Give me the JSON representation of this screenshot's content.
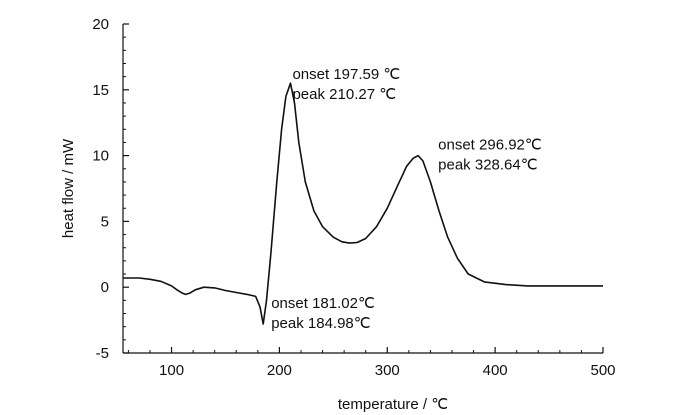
{
  "chart_data": {
    "type": "line",
    "title": "",
    "xlabel": "temperature / ℃",
    "ylabel": "heat flow / mW",
    "xlim": [
      55,
      500
    ],
    "ylim": [
      -5,
      20
    ],
    "x_ticks": [
      100,
      200,
      300,
      400,
      500
    ],
    "y_ticks": [
      -5,
      0,
      5,
      10,
      15,
      20
    ],
    "grid": false,
    "legend": "none",
    "series": [
      {
        "color": "#111111",
        "x": [
          55,
          70,
          80,
          90,
          100,
          105,
          110,
          113,
          117,
          122,
          130,
          140,
          150,
          160,
          170,
          178,
          182,
          184.98,
          188,
          192,
          197.59,
          202,
          206,
          210.27,
          214,
          218,
          224,
          232,
          240,
          250,
          258,
          265,
          272,
          280,
          290,
          300,
          310,
          318,
          324,
          328.64,
          333,
          340,
          348,
          356,
          365,
          375,
          390,
          410,
          430,
          450,
          470,
          490,
          500
        ],
        "y": [
          0.7,
          0.7,
          0.6,
          0.45,
          0.1,
          -0.2,
          -0.45,
          -0.55,
          -0.45,
          -0.2,
          0.0,
          -0.05,
          -0.25,
          -0.4,
          -0.55,
          -0.7,
          -1.5,
          -2.8,
          -1.0,
          2.5,
          8.0,
          12.0,
          14.5,
          15.5,
          14.0,
          11.0,
          8.0,
          5.8,
          4.6,
          3.8,
          3.45,
          3.35,
          3.4,
          3.7,
          4.6,
          6.0,
          7.8,
          9.2,
          9.8,
          10.0,
          9.6,
          8.0,
          5.8,
          3.8,
          2.2,
          1.0,
          0.4,
          0.2,
          0.1,
          0.1,
          0.1,
          0.1,
          0.1
        ]
      }
    ],
    "annotations": [
      {
        "lines": [
          "onset 197.59 ℃",
          "peak 210.27 ℃"
        ],
        "x": 210.27,
        "y": 15.5
      },
      {
        "lines": [
          "onset 296.92℃",
          "peak 328.64℃"
        ],
        "x": 328.64,
        "y": 10.0
      },
      {
        "lines": [
          "onset 181.02℃",
          "peak 184.98℃"
        ],
        "x": 184.98,
        "y": -2.8
      }
    ]
  }
}
